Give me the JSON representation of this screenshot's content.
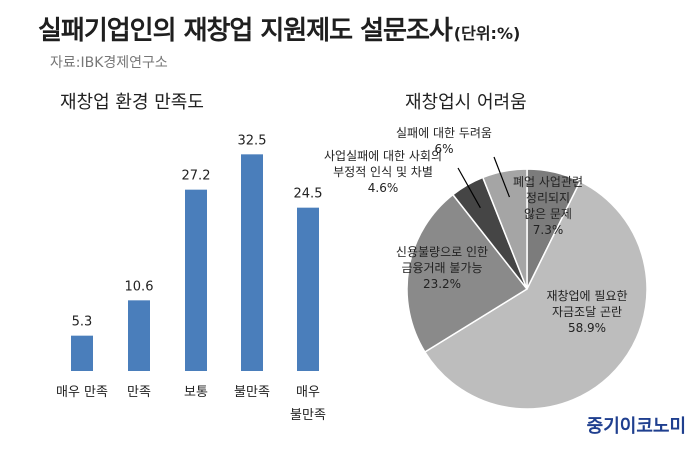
{
  "header": {
    "title": "실패기업인의 재창업 지원제도 설문조사",
    "unit": "(단위:%)",
    "source": "자료:IBK경제연구소"
  },
  "brand": "중기이코노미",
  "chart_data": [
    {
      "type": "bar",
      "title": "재창업 환경 만족도",
      "categories": [
        [
          "매우 만족"
        ],
        [
          "만족"
        ],
        [
          "보통"
        ],
        [
          "불만족"
        ],
        [
          "매우",
          "불만족"
        ]
      ],
      "values": [
        5.3,
        10.6,
        27.2,
        32.5,
        24.5
      ],
      "ylim": [
        0,
        36
      ],
      "color": "#4a7ebb",
      "grid": false,
      "legend": "none"
    },
    {
      "type": "pie",
      "title": "재창업시 어려움",
      "slices": [
        {
          "label": [
            "폐업 사업관련",
            "정리되지",
            "않은 문제"
          ],
          "value": 7.3,
          "value_text": "7.3%",
          "color": "#7c7c7c"
        },
        {
          "label": [
            "재창업에 필요한",
            "자금조달 곤란"
          ],
          "value": 58.9,
          "value_text": "58.9%",
          "color": "#bdbdbd"
        },
        {
          "label": [
            "신용불량으로 인한",
            "금융거래 불가능"
          ],
          "value": 23.2,
          "value_text": "23.2%",
          "color": "#8a8a8a"
        },
        {
          "label": [
            "사업실패에 대한 사회의",
            "부정적 인식 및 차별"
          ],
          "value": 4.6,
          "value_text": "4.6%",
          "color": "#454545"
        },
        {
          "label": [
            "실패에 대한 두려움"
          ],
          "value": 6.0,
          "value_text": "6%",
          "color": "#a5a5a5"
        }
      ]
    }
  ]
}
